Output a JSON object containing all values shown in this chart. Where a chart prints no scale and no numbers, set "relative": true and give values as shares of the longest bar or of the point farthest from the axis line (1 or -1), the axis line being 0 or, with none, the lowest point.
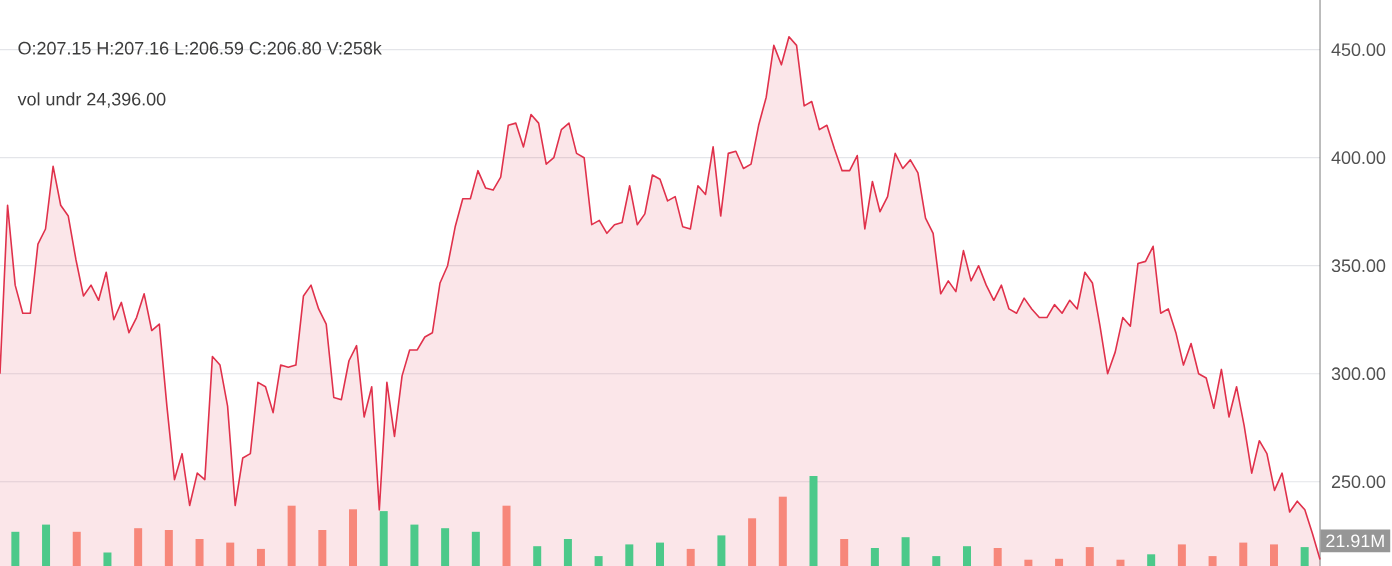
{
  "chart_data": [
    {
      "type": "area",
      "categories": [
        null,
        null,
        null,
        null,
        null,
        null,
        null,
        null,
        null,
        null,
        null,
        null,
        null,
        null,
        null,
        null,
        null,
        null,
        null,
        null,
        null,
        null,
        null,
        null,
        null,
        null,
        null,
        null,
        null,
        null,
        null,
        null,
        null,
        null,
        null,
        null,
        null,
        null,
        null,
        null,
        null,
        null,
        null,
        null,
        null,
        null,
        null,
        null,
        null,
        null,
        null,
        null,
        null,
        null,
        null,
        null,
        null,
        null,
        null,
        null,
        null,
        null,
        null,
        null,
        null,
        null,
        null,
        null,
        null,
        null,
        null,
        null,
        null,
        null,
        null,
        null,
        null,
        null,
        null,
        null,
        null,
        null,
        null,
        null,
        null,
        null,
        null,
        null,
        null,
        null,
        null,
        null,
        null,
        null,
        null,
        null,
        null,
        null,
        null,
        null,
        null,
        null,
        null,
        null,
        null,
        null,
        null,
        null,
        null,
        null,
        null,
        null,
        null,
        null,
        null,
        null,
        null,
        null,
        null,
        null,
        null,
        null,
        null,
        null,
        null,
        null,
        null,
        null,
        null,
        null,
        null,
        null,
        null,
        null,
        null,
        null,
        null,
        null,
        null,
        null,
        null,
        null,
        null,
        null,
        null,
        null,
        null,
        null,
        null,
        null,
        null,
        null,
        null,
        null,
        null,
        null,
        null,
        null,
        null,
        null,
        null,
        null,
        null,
        null,
        null,
        null,
        null,
        null,
        null,
        null,
        null,
        null,
        null,
        null,
        null
      ],
      "series": [
        {
          "color": "#e0314b",
          "values": [
            300,
            378,
            341,
            328,
            328,
            360,
            367,
            396,
            378,
            373,
            353,
            336,
            341,
            334,
            347,
            325,
            333,
            319,
            326,
            337,
            320,
            323,
            285,
            251,
            263,
            239,
            254,
            251,
            308,
            304,
            285,
            239,
            261,
            263,
            296,
            294,
            282,
            304,
            303,
            304,
            336,
            341,
            330,
            323,
            289,
            288,
            306,
            313,
            280,
            294,
            237,
            296,
            271,
            299,
            311,
            311,
            317,
            319,
            342,
            350,
            368,
            381,
            381,
            394,
            386,
            385,
            391,
            415,
            416,
            405,
            420,
            416,
            397,
            400,
            413,
            416,
            402,
            400,
            369,
            371,
            365,
            369,
            370,
            387,
            369,
            374,
            392,
            390,
            380,
            382,
            368,
            367,
            387,
            383,
            405,
            373,
            402,
            403,
            395,
            397,
            415,
            428,
            452,
            443,
            456,
            452,
            424,
            426,
            413,
            415,
            404,
            394,
            394,
            401,
            367,
            389,
            375,
            382,
            402,
            395,
            399,
            393,
            372,
            365,
            337,
            343,
            338,
            357,
            343,
            350,
            341,
            334,
            341,
            330,
            328,
            335,
            330,
            326,
            326,
            332,
            328,
            334,
            330,
            347,
            342,
            322,
            300,
            310,
            326,
            322,
            351,
            352,
            359,
            328,
            330,
            319,
            304,
            314,
            300,
            298,
            284,
            302,
            280,
            294,
            276,
            254,
            269,
            263,
            246,
            254,
            236,
            241,
            237,
            226,
            214
          ]
        }
      ],
      "ylim": [
        211,
        473
      ],
      "yticks": [
        {
          "value": 250,
          "label": "250.00"
        },
        {
          "value": 300,
          "label": "300.00"
        },
        {
          "value": 350,
          "label": "350.00"
        },
        {
          "value": 400,
          "label": "400.00"
        },
        {
          "value": 450,
          "label": "450.00"
        }
      ],
      "tick_labels": "y",
      "grid": "y",
      "annotations": [
        "O:207.15  H:207.16  L:206.59  C:206.80  V:258k",
        "vol undr  24,396.00"
      ]
    },
    {
      "type": "bar",
      "relative": true,
      "categories": [
        null,
        null,
        null,
        null,
        null,
        null,
        null,
        null,
        null,
        null,
        null,
        null,
        null,
        null,
        null,
        null,
        null,
        null,
        null,
        null,
        null,
        null,
        null,
        null,
        null,
        null,
        null,
        null,
        null,
        null,
        null,
        null,
        null,
        null,
        null,
        null,
        null,
        null,
        null,
        null,
        null,
        null,
        null
      ],
      "values": [
        0.38,
        0.46,
        0.38,
        0.15,
        0.42,
        0.4,
        0.3,
        0.26,
        0.19,
        0.67,
        0.4,
        0.63,
        0.61,
        0.46,
        0.42,
        0.38,
        0.67,
        0.22,
        0.3,
        0.11,
        0.24,
        0.26,
        0.19,
        0.34,
        0.53,
        0.77,
        1,
        0.3,
        0.2,
        0.32,
        0.11,
        0.22,
        0.2,
        0.07,
        0.08,
        0.21,
        0.07,
        0.13,
        0.24,
        0.11,
        0.26,
        0.24,
        0.21
      ],
      "colors": [
        "#4cc98a",
        "#4cc98a",
        "#f7877a",
        "#4cc98a",
        "#f7877a",
        "#f7877a",
        "#f7877a",
        "#f7877a",
        "#f7877a",
        "#f7877a",
        "#f7877a",
        "#f7877a",
        "#4cc98a",
        "#4cc98a",
        "#4cc98a",
        "#4cc98a",
        "#f7877a",
        "#4cc98a",
        "#4cc98a",
        "#4cc98a",
        "#4cc98a",
        "#4cc98a",
        "#f7877a",
        "#4cc98a",
        "#f7877a",
        "#f7877a",
        "#4cc98a",
        "#f7877a",
        "#4cc98a",
        "#4cc98a",
        "#4cc98a",
        "#4cc98a",
        "#f7877a",
        "#f7877a",
        "#f7877a",
        "#f7877a",
        "#f7877a",
        "#4cc98a",
        "#f7877a",
        "#f7877a",
        "#f7877a",
        "#f7877a",
        "#4cc98a"
      ],
      "annotations": [
        "21.91M"
      ]
    }
  ]
}
